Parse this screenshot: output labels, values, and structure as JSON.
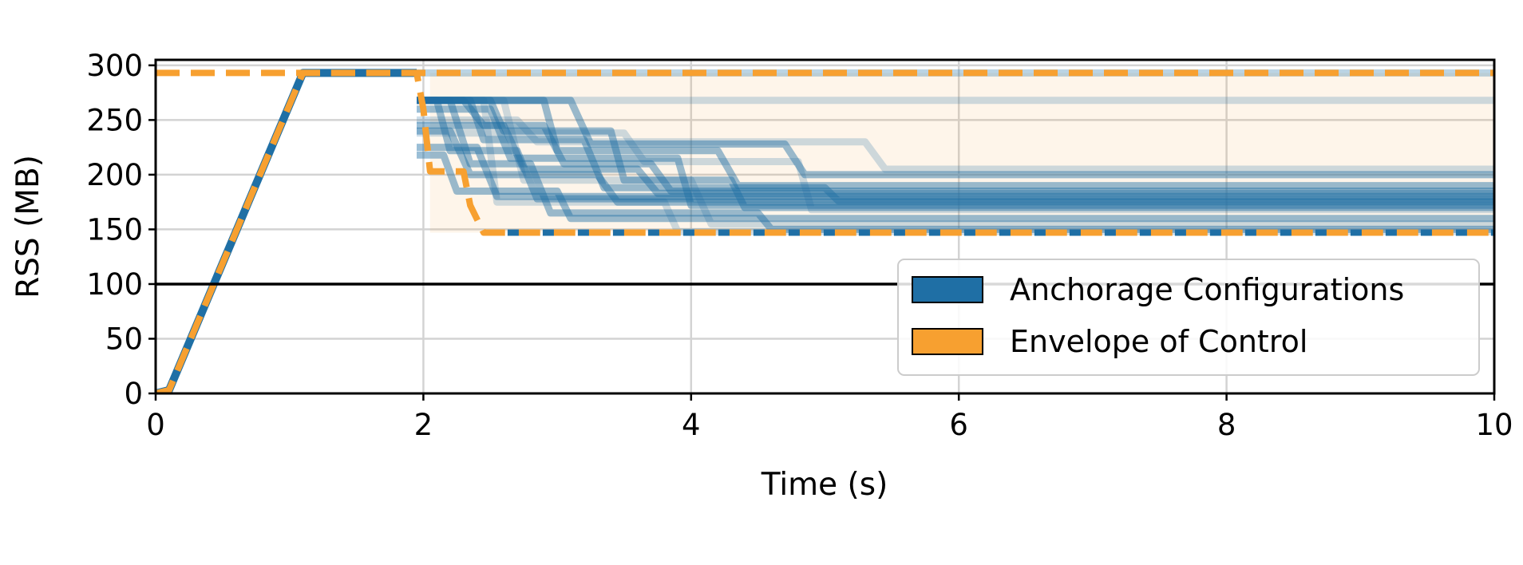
{
  "chart_data": {
    "type": "line",
    "title": "",
    "xlabel": "Time (s)",
    "ylabel": "RSS (MB)",
    "xlim": [
      0,
      10
    ],
    "ylim": [
      0,
      305
    ],
    "x_ticks": [
      0,
      2,
      4,
      6,
      8,
      10
    ],
    "y_ticks": [
      0,
      50,
      100,
      150,
      200,
      250,
      300
    ],
    "grid": true,
    "reference_line": {
      "y": 100,
      "color": "#000000"
    },
    "legend": {
      "placement": "lower-right",
      "entries": [
        {
          "label": "Anchorage Configurations",
          "color": "#1f6fa5"
        },
        {
          "label": "Envelope of Control",
          "color": "#f7a030"
        }
      ]
    },
    "ramp": {
      "x": [
        0,
        0.1,
        1.1,
        1.95
      ],
      "y": [
        0,
        3,
        293,
        293
      ]
    },
    "envelope_upper": {
      "x": [
        0,
        10
      ],
      "y": [
        293,
        293
      ]
    },
    "envelope_lower": {
      "x": [
        0,
        0.1,
        1.1,
        1.95,
        2.0,
        2.05,
        2.3,
        2.35,
        2.45,
        10
      ],
      "y": [
        0,
        3,
        293,
        293,
        260,
        203,
        203,
        172,
        147,
        147
      ]
    },
    "series": [
      {
        "steps": [
          [
            1.95,
            268
          ],
          [
            2.3,
            268
          ],
          [
            2.45,
            245
          ],
          [
            2.9,
            245
          ],
          [
            3.05,
            210
          ],
          [
            3.7,
            210
          ],
          [
            3.85,
            185
          ],
          [
            10,
            185
          ]
        ]
      },
      {
        "steps": [
          [
            1.95,
            268
          ],
          [
            2.1,
            268
          ],
          [
            2.2,
            222
          ],
          [
            2.7,
            222
          ],
          [
            2.85,
            178
          ],
          [
            10,
            178
          ]
        ]
      },
      {
        "steps": [
          [
            1.95,
            240
          ],
          [
            2.2,
            240
          ],
          [
            2.35,
            200
          ],
          [
            3.3,
            200
          ],
          [
            3.45,
            175
          ],
          [
            10,
            175
          ]
        ]
      },
      {
        "steps": [
          [
            1.95,
            268
          ],
          [
            2.5,
            268
          ],
          [
            2.6,
            240
          ],
          [
            3.4,
            240
          ],
          [
            3.5,
            195
          ],
          [
            4.3,
            195
          ],
          [
            4.4,
            170
          ],
          [
            10,
            170
          ]
        ]
      },
      {
        "steps": [
          [
            1.95,
            225
          ],
          [
            2.4,
            225
          ],
          [
            2.55,
            180
          ],
          [
            10,
            180
          ]
        ]
      },
      {
        "steps": [
          [
            1.95,
            268
          ],
          [
            2.2,
            268
          ],
          [
            2.35,
            210
          ],
          [
            2.8,
            210
          ],
          [
            2.95,
            165
          ],
          [
            4.5,
            165
          ],
          [
            4.6,
            150
          ],
          [
            10,
            150
          ]
        ]
      },
      {
        "steps": [
          [
            1.95,
            245
          ],
          [
            2.6,
            245
          ],
          [
            2.75,
            205
          ],
          [
            3.6,
            205
          ],
          [
            3.75,
            183
          ],
          [
            10,
            183
          ]
        ]
      },
      {
        "steps": [
          [
            1.95,
            268
          ],
          [
            2.9,
            268
          ],
          [
            3.0,
            222
          ],
          [
            4.2,
            222
          ],
          [
            4.35,
            190
          ],
          [
            10,
            190
          ]
        ]
      },
      {
        "steps": [
          [
            1.95,
            218
          ],
          [
            2.15,
            218
          ],
          [
            2.25,
            185
          ],
          [
            3.0,
            185
          ],
          [
            3.1,
            160
          ],
          [
            10,
            160
          ]
        ]
      },
      {
        "steps": [
          [
            1.95,
            268
          ],
          [
            2.35,
            268
          ],
          [
            2.45,
            232
          ],
          [
            3.2,
            232
          ],
          [
            3.35,
            188
          ],
          [
            5.0,
            188
          ],
          [
            5.1,
            176
          ],
          [
            10,
            176
          ]
        ]
      },
      {
        "steps": [
          [
            1.95,
            260
          ],
          [
            2.5,
            260
          ],
          [
            2.65,
            215
          ],
          [
            3.9,
            215
          ],
          [
            4.0,
            172
          ],
          [
            10,
            172
          ]
        ]
      },
      {
        "steps": [
          [
            1.95,
            268
          ],
          [
            3.1,
            268
          ],
          [
            3.25,
            228
          ],
          [
            4.7,
            228
          ],
          [
            4.85,
            200
          ],
          [
            10,
            200
          ]
        ]
      },
      {
        "steps": [
          [
            1.95,
            268
          ],
          [
            10,
            268
          ]
        ],
        "faint": true
      },
      {
        "steps": [
          [
            1.95,
            250
          ],
          [
            2.7,
            250
          ],
          [
            2.85,
            230
          ],
          [
            5.3,
            230
          ],
          [
            5.45,
            205
          ],
          [
            10,
            205
          ]
        ],
        "faint": true
      },
      {
        "steps": [
          [
            1.95,
            268
          ],
          [
            2.6,
            268
          ],
          [
            2.75,
            195
          ],
          [
            4.0,
            195
          ],
          [
            4.15,
            155
          ],
          [
            10,
            155
          ]
        ],
        "faint": true
      },
      {
        "steps": [
          [
            1.95,
            238
          ],
          [
            3.5,
            238
          ],
          [
            3.65,
            212
          ],
          [
            4.8,
            212
          ],
          [
            4.9,
            168
          ],
          [
            10,
            168
          ]
        ],
        "faint": true
      },
      {
        "steps": [
          [
            1.95,
            268
          ],
          [
            2.45,
            268
          ],
          [
            2.55,
            175
          ],
          [
            3.8,
            175
          ],
          [
            3.9,
            148
          ],
          [
            10,
            148
          ]
        ],
        "faint": true
      }
    ]
  }
}
